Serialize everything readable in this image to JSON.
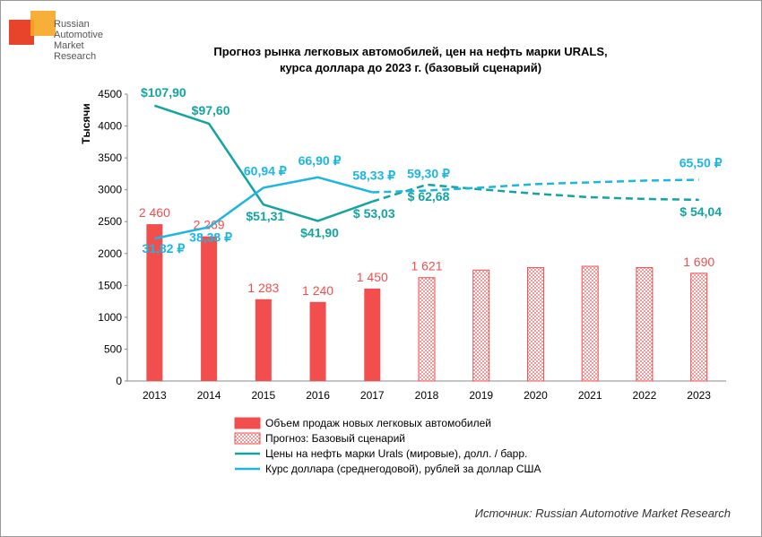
{
  "chart_data": {
    "type": "bar_line",
    "logo_text": [
      "Russian",
      "Automotive",
      "Market",
      "Research"
    ],
    "title": [
      "Прогноз рынка легковых автомобилей, цен на нефть марки URALS,",
      "курса доллара до 2023 г. (базовый сценарий)"
    ],
    "y_label": "Тысячи",
    "source": "Источник: Russian Automotive Market Research",
    "categories": [
      "2013",
      "2014",
      "2015",
      "2016",
      "2017",
      "2018",
      "2019",
      "2020",
      "2021",
      "2022",
      "2023"
    ],
    "ylim": [
      0,
      4500
    ],
    "yticks": [
      0,
      500,
      1000,
      1500,
      2000,
      2500,
      3000,
      3500,
      4000,
      4500
    ],
    "y2lim": [
      -49.7,
      114.5
    ],
    "series": [
      {
        "name": "Объем продаж новых легковых автомобилей",
        "kind": "bar",
        "color": "#f24e4e",
        "values": [
          2460,
          2269,
          1283,
          1240,
          1450,
          null,
          null,
          null,
          null,
          null,
          null
        ],
        "value_labels": [
          "2 460",
          "2 269",
          "1 283",
          "1 240",
          "1 450",
          null,
          null,
          null,
          null,
          null,
          null
        ]
      },
      {
        "name": "Прогноз: Базовый сценарий",
        "kind": "bar_forecast",
        "color": "#f24e4e",
        "values": [
          null,
          null,
          null,
          null,
          null,
          1621,
          1740,
          1780,
          1800,
          1780,
          1690
        ],
        "value_labels": [
          null,
          null,
          null,
          null,
          null,
          "1 621",
          null,
          null,
          null,
          null,
          "1 690"
        ]
      },
      {
        "name": "Цены на нефть марки Urals (мировые), долл. / барр.",
        "kind": "line",
        "axis": "y2",
        "color": "#12a4a0",
        "values": [
          107.9,
          97.6,
          51.31,
          41.9,
          53.03,
          62.68,
          60,
          57.5,
          55.5,
          54.5,
          54.04
        ],
        "value_labels": [
          "$107,90",
          "$97,60",
          "$51,31",
          "$41,90",
          "$ 53,03",
          "$ 62,68",
          null,
          null,
          null,
          null,
          "$ 54,04"
        ]
      },
      {
        "name": "Курс доллара (среднегодовой), рублей за доллар США",
        "kind": "line",
        "axis": "y2",
        "color": "#1cb6e2",
        "values": [
          31.82,
          38.38,
          60.94,
          66.9,
          58.33,
          59.3,
          61,
          63,
          64,
          65,
          65.5
        ],
        "value_labels": [
          "31,82 ₽",
          "38,38 ₽",
          "60,94 ₽",
          "66,90 ₽",
          "58,33 ₽",
          "59,30 ₽",
          null,
          null,
          null,
          null,
          "65,50 ₽"
        ]
      }
    ]
  }
}
